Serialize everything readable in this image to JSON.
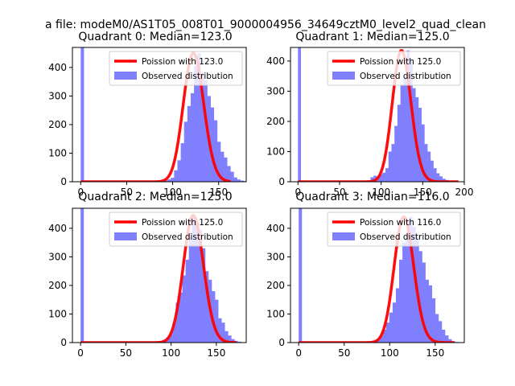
{
  "figure": {
    "suptitle": "a file: modeM0/AS1T05_008T01_9000004956_34649cztM0_level2_quad_clean"
  },
  "colors": {
    "hist": "#8080ff",
    "poisson": "#ff0000",
    "axis": "#000000",
    "legend_border": "#cccccc"
  },
  "chart_data": [
    {
      "type": "bar",
      "title": "Quadrant 0: Median=123.0",
      "legend": [
        "Poission with 123.0",
        "Observed distribution"
      ],
      "median": 123.0,
      "xlim": [
        -9,
        180
      ],
      "ylim": [
        0,
        470
      ],
      "xticks": [
        0,
        50,
        100,
        150
      ],
      "yticks": [
        0,
        100,
        200,
        300,
        400
      ],
      "bin_width": 3.6,
      "zero_bin_height": 470,
      "hist_start": 80,
      "hist_values": [
        2,
        2,
        3,
        5,
        8,
        14,
        40,
        75,
        135,
        210,
        265,
        310,
        405,
        450,
        380,
        355,
        300,
        260,
        215,
        140,
        105,
        85,
        55,
        35,
        15,
        8,
        4,
        2
      ],
      "curve_range": [
        0,
        163
      ]
    },
    {
      "type": "bar",
      "title": "Quadrant 1: Median=125.0",
      "legend": [
        "Poission with 125.0",
        "Observed distribution"
      ],
      "median": 125.0,
      "xlim": [
        -9,
        200
      ],
      "ylim": [
        0,
        445
      ],
      "xticks": [
        0,
        50,
        100,
        150,
        200
      ],
      "yticks": [
        0,
        100,
        200,
        300,
        400
      ],
      "bin_width": 3.6,
      "zero_bin_height": 445,
      "hist_start": 80,
      "hist_values": [
        3,
        5,
        15,
        20,
        18,
        25,
        30,
        45,
        100,
        125,
        185,
        255,
        320,
        345,
        435,
        400,
        310,
        280,
        245,
        190,
        125,
        100,
        70,
        45,
        28,
        18,
        10,
        6,
        3
      ],
      "curve_range": [
        0,
        193
      ]
    },
    {
      "type": "bar",
      "title": "Quadrant 2: Median=125.0",
      "legend": [
        "Poission with 125.0",
        "Observed distribution"
      ],
      "median": 125.0,
      "xlim": [
        -9,
        183
      ],
      "ylim": [
        0,
        470
      ],
      "xticks": [
        0,
        50,
        100,
        150
      ],
      "yticks": [
        0,
        100,
        200,
        300,
        400
      ],
      "bin_width": 3.6,
      "zero_bin_height": 470,
      "hist_start": 80,
      "hist_values": [
        2,
        3,
        5,
        10,
        18,
        30,
        70,
        140,
        175,
        235,
        290,
        370,
        445,
        420,
        395,
        330,
        250,
        220,
        180,
        150,
        85,
        70,
        40,
        25,
        12,
        6,
        3
      ],
      "curve_range": [
        0,
        172
      ]
    },
    {
      "type": "bar",
      "title": "Quadrant 3: Median=116.0",
      "legend": [
        "Poission with 116.0",
        "Observed distribution"
      ],
      "median": 116.0,
      "xlim": [
        -9,
        182
      ],
      "ylim": [
        0,
        470
      ],
      "xticks": [
        0,
        50,
        100,
        150
      ],
      "yticks": [
        0,
        100,
        200,
        300,
        400
      ],
      "bin_width": 3.6,
      "zero_bin_height": 470,
      "hist_start": 78,
      "hist_values": [
        2,
        5,
        12,
        22,
        45,
        70,
        105,
        140,
        190,
        290,
        350,
        385,
        440,
        405,
        370,
        320,
        280,
        220,
        200,
        155,
        100,
        75,
        45,
        25,
        12,
        5,
        2
      ],
      "curve_range": [
        0,
        171
      ]
    }
  ]
}
